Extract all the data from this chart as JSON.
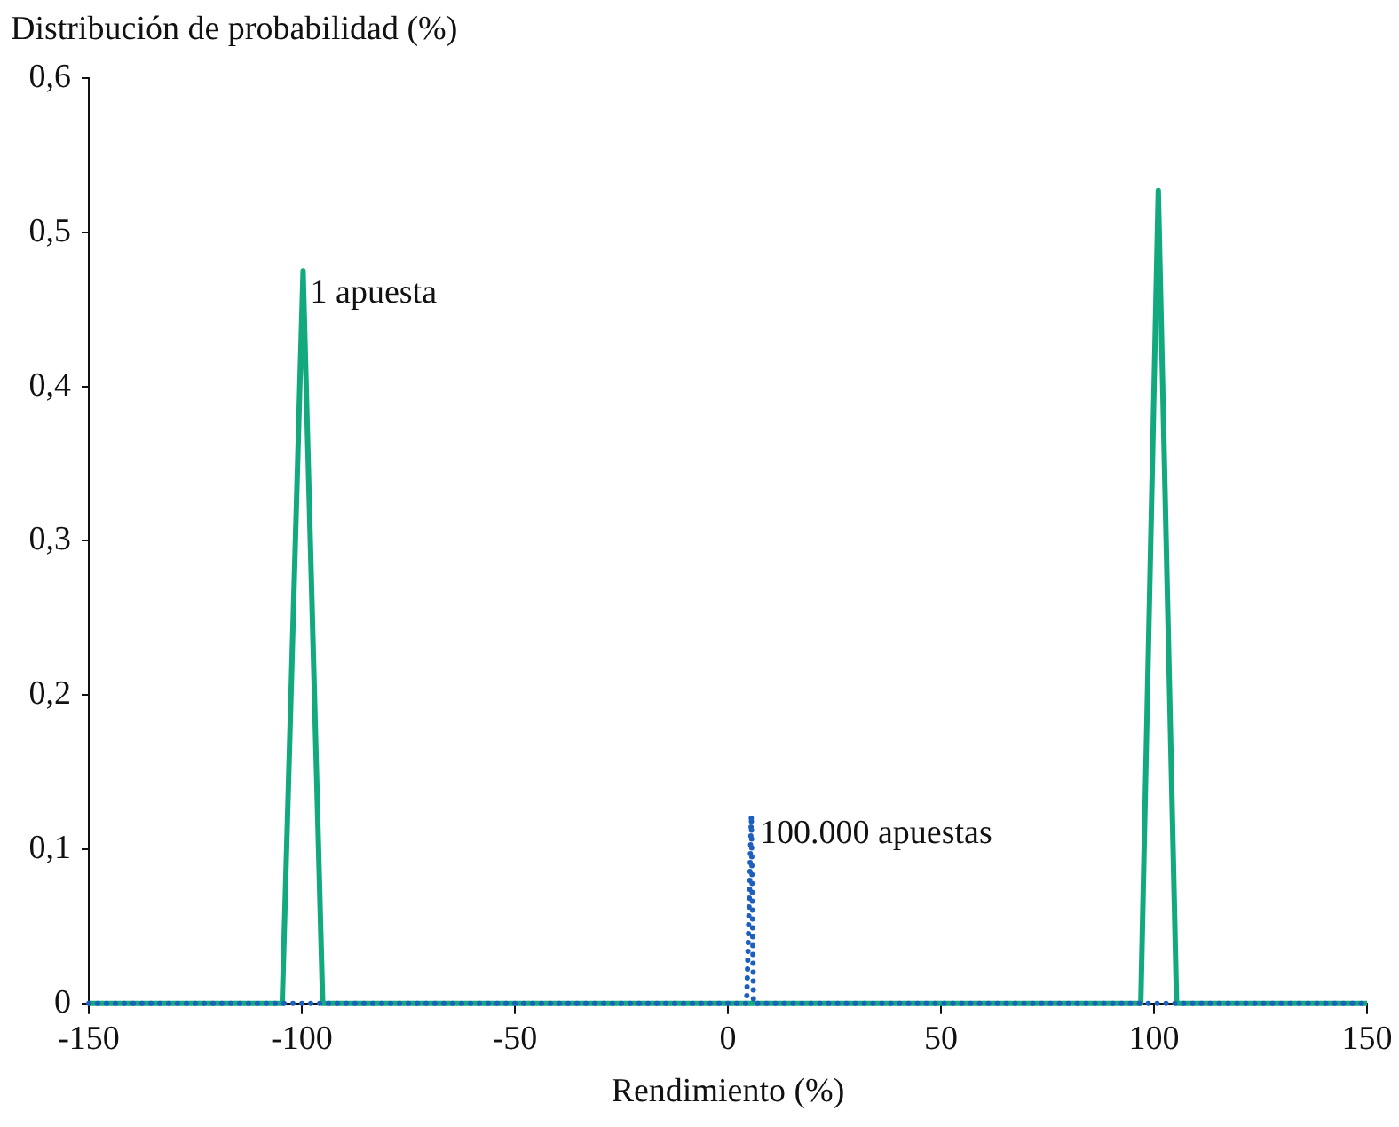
{
  "chart_data": {
    "type": "line",
    "ylabel": "Distribución de probabilidad (%)",
    "xlabel": "Rendimiento (%)",
    "xlim": [
      -150,
      150
    ],
    "xticks": [
      -150,
      -100,
      -50,
      0,
      50,
      100,
      150
    ],
    "ylim": [
      0,
      0.6
    ],
    "yticks": [
      0,
      {
        "value": 0.1,
        "label": "0,1"
      },
      {
        "value": 0.2,
        "label": "0,2"
      },
      {
        "value": 0.3,
        "label": "0,3"
      },
      {
        "value": 0.4,
        "label": "0,4"
      },
      {
        "value": 0.5,
        "label": "0,5"
      },
      {
        "value": 0.6,
        "label": "0,6"
      }
    ],
    "grid": false,
    "legend": false,
    "marker": "none",
    "series": [
      {
        "color": "#12a97e",
        "line_style": "solid",
        "x": [
          -150,
          -104.6,
          -99.7,
          -95.1,
          96.9,
          101,
          105.3,
          150
        ],
        "values": [
          0,
          0,
          0.475,
          0,
          0,
          0.527,
          0,
          0
        ]
      },
      {
        "color": "#1d5fbd",
        "line_style": "dotted",
        "x": [
          -150,
          4.4,
          5.5,
          6,
          150
        ],
        "values": [
          0,
          0,
          0.122,
          0,
          0
        ]
      }
    ],
    "annotations": [
      {
        "text": "1 apuesta",
        "x": -98,
        "y": 0.46
      },
      {
        "text": "100.000 apuestas",
        "x": 7.5,
        "y": 0.11
      }
    ]
  }
}
